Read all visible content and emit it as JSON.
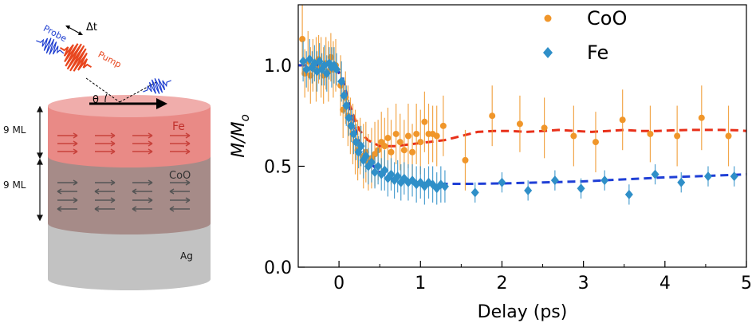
{
  "schematic": {
    "probe_label": "Probe",
    "pump_label": "Pump",
    "delay_label": "Δt",
    "angle_label": "θ",
    "thickness_top": "9 ML",
    "thickness_bottom": "9 ML",
    "layers": [
      {
        "name": "Fe",
        "color": "#e8807c",
        "text_color": "#c0302c"
      },
      {
        "name": "CoO",
        "color": "#a58a87",
        "text_color": "#3a3a3a"
      },
      {
        "name": "Ag",
        "color": "#c0c0c0",
        "text_color": "#111111"
      }
    ],
    "probe_color": "#1f3fd0",
    "pump_color": "#e8461e"
  },
  "chart_data": {
    "type": "scatter",
    "xlabel": "Delay (ps)",
    "ylabel": "M/M",
    "ylabel_sub": "o",
    "xlim": [
      -0.5,
      5
    ],
    "ylim": [
      0.0,
      1.3
    ],
    "xticks": [
      0,
      1,
      2,
      3,
      4,
      5
    ],
    "xtick_labels": [
      "0",
      "1",
      "2",
      "3",
      "4",
      "5"
    ],
    "yticks": [
      0.0,
      0.5,
      1.0
    ],
    "ytick_labels": [
      "0.0",
      "0.5",
      "1.0"
    ],
    "legend_position": "top-right",
    "series": [
      {
        "name": "CoO",
        "color": "#f0962a",
        "marker": "circle",
        "points": [
          [
            -0.45,
            1.13,
            0.18
          ],
          [
            -0.42,
            0.96,
            0.12
          ],
          [
            -0.38,
            1.02,
            0.15
          ],
          [
            -0.35,
            0.95,
            0.14
          ],
          [
            -0.32,
            1.0,
            0.13
          ],
          [
            -0.28,
            0.98,
            0.16
          ],
          [
            -0.25,
            1.03,
            0.12
          ],
          [
            -0.22,
            0.99,
            0.15
          ],
          [
            -0.19,
            0.95,
            0.14
          ],
          [
            -0.16,
            1.01,
            0.13
          ],
          [
            -0.13,
            0.97,
            0.15
          ],
          [
            -0.1,
            1.04,
            0.12
          ],
          [
            -0.07,
            0.98,
            0.14
          ],
          [
            -0.04,
            1.0,
            0.13
          ],
          [
            0.02,
            0.9,
            0.15
          ],
          [
            0.05,
            0.78,
            0.14
          ],
          [
            0.08,
            0.84,
            0.13
          ],
          [
            0.11,
            0.75,
            0.15
          ],
          [
            0.14,
            0.7,
            0.14
          ],
          [
            0.17,
            0.66,
            0.15
          ],
          [
            0.2,
            0.62,
            0.16
          ],
          [
            0.23,
            0.58,
            0.15
          ],
          [
            0.26,
            0.6,
            0.14
          ],
          [
            0.3,
            0.55,
            0.16
          ],
          [
            0.33,
            0.57,
            0.15
          ],
          [
            0.36,
            0.52,
            0.14
          ],
          [
            0.4,
            0.54,
            0.15
          ],
          [
            0.44,
            0.56,
            0.16
          ],
          [
            0.48,
            0.58,
            0.15
          ],
          [
            0.52,
            0.62,
            0.15
          ],
          [
            0.56,
            0.6,
            0.14
          ],
          [
            0.6,
            0.64,
            0.15
          ],
          [
            0.64,
            0.57,
            0.16
          ],
          [
            0.7,
            0.66,
            0.15
          ],
          [
            0.75,
            0.62,
            0.14
          ],
          [
            0.8,
            0.58,
            0.15
          ],
          [
            0.85,
            0.65,
            0.16
          ],
          [
            0.9,
            0.57,
            0.14
          ],
          [
            0.95,
            0.66,
            0.15
          ],
          [
            1.0,
            0.62,
            0.16
          ],
          [
            1.05,
            0.72,
            0.15
          ],
          [
            1.1,
            0.66,
            0.15
          ],
          [
            1.15,
            0.66,
            0.14
          ],
          [
            1.2,
            0.65,
            0.15
          ],
          [
            1.28,
            0.7,
            0.15
          ],
          [
            1.55,
            0.53,
            0.15
          ],
          [
            1.88,
            0.75,
            0.15
          ],
          [
            2.22,
            0.71,
            0.14
          ],
          [
            2.52,
            0.69,
            0.15
          ],
          [
            2.88,
            0.65,
            0.15
          ],
          [
            3.15,
            0.62,
            0.15
          ],
          [
            3.48,
            0.73,
            0.15
          ],
          [
            3.82,
            0.66,
            0.14
          ],
          [
            4.15,
            0.65,
            0.15
          ],
          [
            4.45,
            0.74,
            0.16
          ],
          [
            4.78,
            0.65,
            0.15
          ]
        ],
        "fit": [
          [
            -0.5,
            1.0
          ],
          [
            -0.05,
            1.0
          ],
          [
            0.05,
            0.92
          ],
          [
            0.15,
            0.78
          ],
          [
            0.25,
            0.68
          ],
          [
            0.35,
            0.63
          ],
          [
            0.5,
            0.6
          ],
          [
            0.7,
            0.6
          ],
          [
            0.9,
            0.61
          ],
          [
            1.1,
            0.62
          ],
          [
            1.3,
            0.63
          ],
          [
            1.5,
            0.65
          ],
          [
            1.7,
            0.67
          ],
          [
            1.9,
            0.675
          ],
          [
            2.1,
            0.675
          ],
          [
            2.3,
            0.67
          ],
          [
            2.5,
            0.675
          ],
          [
            2.7,
            0.68
          ],
          [
            2.9,
            0.675
          ],
          [
            3.1,
            0.67
          ],
          [
            3.3,
            0.675
          ],
          [
            3.5,
            0.68
          ],
          [
            3.7,
            0.675
          ],
          [
            3.9,
            0.675
          ],
          [
            4.1,
            0.678
          ],
          [
            4.3,
            0.68
          ],
          [
            4.5,
            0.68
          ],
          [
            4.7,
            0.68
          ],
          [
            4.9,
            0.678
          ],
          [
            5.0,
            0.675
          ]
        ]
      },
      {
        "name": "Fe",
        "color": "#2f8fc8",
        "marker": "diamond",
        "points": [
          [
            -0.44,
            1.02,
            0.1
          ],
          [
            -0.4,
            0.98,
            0.09
          ],
          [
            -0.36,
            1.03,
            0.1
          ],
          [
            -0.33,
            0.99,
            0.08
          ],
          [
            -0.3,
            1.01,
            0.09
          ],
          [
            -0.27,
            0.97,
            0.1
          ],
          [
            -0.24,
            1.02,
            0.09
          ],
          [
            -0.21,
            0.98,
            0.08
          ],
          [
            -0.18,
            1.0,
            0.1
          ],
          [
            -0.15,
            0.96,
            0.09
          ],
          [
            -0.12,
            1.01,
            0.08
          ],
          [
            -0.09,
            0.99,
            0.1
          ],
          [
            -0.06,
            1.0,
            0.09
          ],
          [
            -0.03,
            0.98,
            0.08
          ],
          [
            0.03,
            0.92,
            0.1
          ],
          [
            0.06,
            0.85,
            0.09
          ],
          [
            0.09,
            0.8,
            0.1
          ],
          [
            0.12,
            0.74,
            0.09
          ],
          [
            0.15,
            0.7,
            0.08
          ],
          [
            0.18,
            0.66,
            0.1
          ],
          [
            0.21,
            0.62,
            0.09
          ],
          [
            0.24,
            0.57,
            0.08
          ],
          [
            0.27,
            0.6,
            0.1
          ],
          [
            0.3,
            0.53,
            0.09
          ],
          [
            0.33,
            0.55,
            0.08
          ],
          [
            0.36,
            0.5,
            0.09
          ],
          [
            0.4,
            0.52,
            0.1
          ],
          [
            0.44,
            0.47,
            0.08
          ],
          [
            0.48,
            0.5,
            0.09
          ],
          [
            0.52,
            0.46,
            0.08
          ],
          [
            0.56,
            0.48,
            0.1
          ],
          [
            0.6,
            0.44,
            0.09
          ],
          [
            0.64,
            0.46,
            0.08
          ],
          [
            0.68,
            0.43,
            0.09
          ],
          [
            0.72,
            0.45,
            0.08
          ],
          [
            0.76,
            0.42,
            0.09
          ],
          [
            0.8,
            0.44,
            0.08
          ],
          [
            0.85,
            0.42,
            0.09
          ],
          [
            0.9,
            0.43,
            0.08
          ],
          [
            0.95,
            0.41,
            0.09
          ],
          [
            1.0,
            0.42,
            0.08
          ],
          [
            1.05,
            0.4,
            0.09
          ],
          [
            1.1,
            0.42,
            0.08
          ],
          [
            1.15,
            0.41,
            0.09
          ],
          [
            1.2,
            0.39,
            0.08
          ],
          [
            1.25,
            0.41,
            0.09
          ],
          [
            1.3,
            0.4,
            0.08
          ],
          [
            1.67,
            0.37,
            0.05
          ],
          [
            2.0,
            0.42,
            0.05
          ],
          [
            2.32,
            0.38,
            0.05
          ],
          [
            2.65,
            0.43,
            0.05
          ],
          [
            2.97,
            0.39,
            0.05
          ],
          [
            3.26,
            0.43,
            0.05
          ],
          [
            3.56,
            0.36,
            0.05
          ],
          [
            3.88,
            0.46,
            0.05
          ],
          [
            4.2,
            0.42,
            0.05
          ],
          [
            4.53,
            0.45,
            0.05
          ],
          [
            4.85,
            0.45,
            0.05
          ]
        ],
        "fit": [
          [
            -0.5,
            1.0
          ],
          [
            -0.05,
            1.0
          ],
          [
            0.05,
            0.93
          ],
          [
            0.15,
            0.76
          ],
          [
            0.25,
            0.62
          ],
          [
            0.35,
            0.53
          ],
          [
            0.5,
            0.47
          ],
          [
            0.7,
            0.43
          ],
          [
            0.9,
            0.42
          ],
          [
            1.1,
            0.415
          ],
          [
            1.3,
            0.413
          ],
          [
            1.6,
            0.413
          ],
          [
            2.0,
            0.415
          ],
          [
            2.5,
            0.42
          ],
          [
            3.0,
            0.425
          ],
          [
            3.5,
            0.435
          ],
          [
            4.0,
            0.445
          ],
          [
            4.5,
            0.452
          ],
          [
            5.0,
            0.46
          ]
        ]
      }
    ]
  }
}
